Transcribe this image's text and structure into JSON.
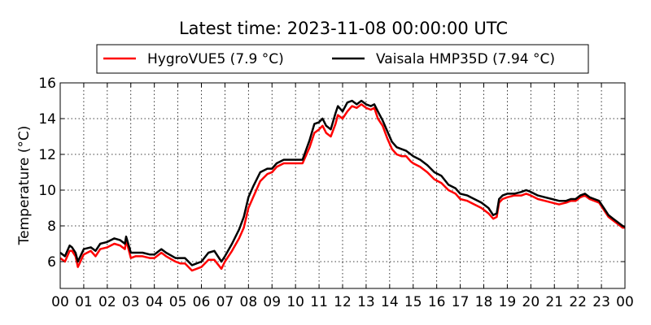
{
  "chart_data": {
    "type": "line",
    "title": "Latest time: 2023-11-08 00:00:00 UTC",
    "xlabel": "",
    "ylabel": "Temperature (°C)",
    "xlim": [
      0,
      24
    ],
    "ylim": [
      4.5,
      16
    ],
    "xticks": [
      0,
      1,
      2,
      3,
      4,
      5,
      6,
      7,
      8,
      9,
      10,
      11,
      12,
      13,
      14,
      15,
      16,
      17,
      18,
      19,
      20,
      21,
      22,
      23,
      24
    ],
    "xtick_labels": [
      "00",
      "01",
      "02",
      "03",
      "04",
      "05",
      "06",
      "07",
      "08",
      "09",
      "10",
      "11",
      "12",
      "13",
      "14",
      "15",
      "16",
      "17",
      "18",
      "19",
      "20",
      "21",
      "22",
      "23",
      "00"
    ],
    "yticks": [
      6,
      8,
      10,
      12,
      14,
      16
    ],
    "ytick_labels": [
      "6",
      "8",
      "10",
      "12",
      "14",
      "16"
    ],
    "grid": true,
    "legend_position": "top",
    "series": [
      {
        "name": "HygroVUE5 (7.9 °C)",
        "color": "#ff0000",
        "x": [
          0,
          0.2,
          0.4,
          0.5,
          0.65,
          0.75,
          1.0,
          1.3,
          1.5,
          1.7,
          2.0,
          2.3,
          2.55,
          2.75,
          2.8,
          3.0,
          3.2,
          3.5,
          3.8,
          4.0,
          4.3,
          4.5,
          4.9,
          5.1,
          5.3,
          5.6,
          5.8,
          6.0,
          6.3,
          6.55,
          6.85,
          7.0,
          7.3,
          7.6,
          7.8,
          8.0,
          8.2,
          8.5,
          8.8,
          9.0,
          9.2,
          9.5,
          9.8,
          10.0,
          10.3,
          10.6,
          10.8,
          11.0,
          11.15,
          11.3,
          11.5,
          11.7,
          11.8,
          12.0,
          12.2,
          12.4,
          12.6,
          12.8,
          13.0,
          13.2,
          13.35,
          13.5,
          13.7,
          13.9,
          14.1,
          14.3,
          14.5,
          14.7,
          14.9,
          15.0,
          15.3,
          15.6,
          15.9,
          16.2,
          16.5,
          16.8,
          17.0,
          17.3,
          17.6,
          17.9,
          18.2,
          18.4,
          18.55,
          18.65,
          18.8,
          19.0,
          19.3,
          19.6,
          19.8,
          20.0,
          20.3,
          20.6,
          20.9,
          21.2,
          21.5,
          21.7,
          21.9,
          22.1,
          22.3,
          22.5,
          22.7,
          22.9,
          23.1,
          23.3,
          23.5,
          23.7,
          23.9,
          24.0
        ],
        "values": [
          6.2,
          6.0,
          6.6,
          6.6,
          6.3,
          5.7,
          6.4,
          6.6,
          6.3,
          6.7,
          6.8,
          7.0,
          6.9,
          6.7,
          7.2,
          6.2,
          6.3,
          6.3,
          6.2,
          6.2,
          6.5,
          6.3,
          6.0,
          5.9,
          5.9,
          5.5,
          5.6,
          5.7,
          6.1,
          6.1,
          5.6,
          6.0,
          6.6,
          7.3,
          7.9,
          9.0,
          9.6,
          10.5,
          10.9,
          11.0,
          11.3,
          11.5,
          11.5,
          11.5,
          11.5,
          12.4,
          13.2,
          13.4,
          13.6,
          13.2,
          13.0,
          13.7,
          14.2,
          14.0,
          14.4,
          14.7,
          14.6,
          14.8,
          14.6,
          14.5,
          14.6,
          14.0,
          13.6,
          12.9,
          12.3,
          12.0,
          11.9,
          11.9,
          11.6,
          11.5,
          11.3,
          11.0,
          10.6,
          10.4,
          10.0,
          9.8,
          9.5,
          9.4,
          9.2,
          9.0,
          8.7,
          8.4,
          8.5,
          9.3,
          9.5,
          9.6,
          9.7,
          9.7,
          9.8,
          9.7,
          9.5,
          9.4,
          9.3,
          9.2,
          9.3,
          9.4,
          9.4,
          9.6,
          9.7,
          9.5,
          9.4,
          9.3,
          8.9,
          8.5,
          8.3,
          8.1,
          7.9,
          7.9
        ]
      },
      {
        "name": "Vaisala HMP35D (7.94 °C)",
        "color": "#000000",
        "x": [
          0,
          0.2,
          0.4,
          0.5,
          0.65,
          0.75,
          1.0,
          1.3,
          1.5,
          1.7,
          2.0,
          2.3,
          2.55,
          2.75,
          2.8,
          3.0,
          3.2,
          3.5,
          3.8,
          4.0,
          4.3,
          4.5,
          4.9,
          5.1,
          5.3,
          5.6,
          5.8,
          6.0,
          6.3,
          6.55,
          6.85,
          7.0,
          7.3,
          7.6,
          7.8,
          8.0,
          8.2,
          8.5,
          8.8,
          9.0,
          9.2,
          9.5,
          9.8,
          10.0,
          10.3,
          10.6,
          10.8,
          11.0,
          11.15,
          11.3,
          11.5,
          11.7,
          11.8,
          12.0,
          12.2,
          12.4,
          12.6,
          12.8,
          13.0,
          13.2,
          13.35,
          13.5,
          13.7,
          13.9,
          14.1,
          14.3,
          14.5,
          14.7,
          14.9,
          15.0,
          15.3,
          15.6,
          15.9,
          16.2,
          16.5,
          16.8,
          17.0,
          17.3,
          17.6,
          17.9,
          18.2,
          18.4,
          18.55,
          18.65,
          18.8,
          19.0,
          19.3,
          19.6,
          19.8,
          20.0,
          20.3,
          20.6,
          20.9,
          21.2,
          21.5,
          21.7,
          21.9,
          22.1,
          22.3,
          22.5,
          22.7,
          22.9,
          23.1,
          23.3,
          23.5,
          23.7,
          23.9,
          24.0
        ],
        "values": [
          6.5,
          6.3,
          6.9,
          6.8,
          6.5,
          6.0,
          6.7,
          6.8,
          6.6,
          7.0,
          7.1,
          7.3,
          7.2,
          7.0,
          7.4,
          6.5,
          6.5,
          6.5,
          6.4,
          6.4,
          6.7,
          6.5,
          6.2,
          6.2,
          6.2,
          5.8,
          5.9,
          6.0,
          6.5,
          6.6,
          6.0,
          6.3,
          7.0,
          7.8,
          8.5,
          9.6,
          10.2,
          11.0,
          11.2,
          11.2,
          11.5,
          11.7,
          11.7,
          11.7,
          11.7,
          12.8,
          13.7,
          13.8,
          14.0,
          13.6,
          13.4,
          14.3,
          14.7,
          14.4,
          14.9,
          15.0,
          14.8,
          15.0,
          14.8,
          14.7,
          14.8,
          14.4,
          13.9,
          13.3,
          12.7,
          12.4,
          12.3,
          12.2,
          12.0,
          11.9,
          11.7,
          11.4,
          11.0,
          10.8,
          10.3,
          10.1,
          9.8,
          9.7,
          9.5,
          9.3,
          9.0,
          8.6,
          8.7,
          9.5,
          9.7,
          9.8,
          9.8,
          9.9,
          10.0,
          9.9,
          9.7,
          9.6,
          9.5,
          9.4,
          9.4,
          9.5,
          9.5,
          9.7,
          9.8,
          9.6,
          9.5,
          9.4,
          9.0,
          8.6,
          8.4,
          8.2,
          8.0,
          7.94
        ]
      }
    ]
  }
}
